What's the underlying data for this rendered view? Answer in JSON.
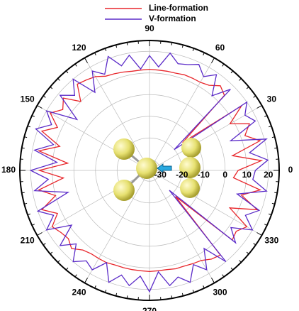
{
  "chart_data": {
    "type": "polar",
    "theta": [
      0,
      5,
      10,
      15,
      20,
      25,
      30,
      35,
      40,
      45,
      50,
      55,
      60,
      65,
      70,
      75,
      80,
      85,
      90,
      95,
      100,
      105,
      110,
      115,
      120,
      125,
      130,
      135,
      140,
      145,
      150,
      155,
      160,
      165,
      170,
      175,
      180,
      185,
      190,
      195,
      200,
      205,
      210,
      215,
      220,
      225,
      230,
      235,
      240,
      245,
      250,
      255,
      260,
      265,
      270,
      275,
      280,
      285,
      290,
      295,
      300,
      305,
      310,
      315,
      320,
      325,
      330,
      335,
      340,
      345,
      350,
      355
    ],
    "series": [
      {
        "name": "Line-formation",
        "color": "#e8262b",
        "values": [
          6,
          17,
          4,
          18,
          12,
          16,
          8,
          17,
          -15,
          14,
          16,
          13,
          12,
          12,
          12,
          11.5,
          11.5,
          11.5,
          11.7,
          11.5,
          11.5,
          12,
          12.5,
          13,
          15,
          16,
          17,
          10,
          17,
          14,
          18,
          12,
          18,
          8,
          17,
          3,
          16,
          5,
          17,
          10,
          18,
          12,
          17,
          15,
          14,
          16,
          13,
          12,
          12,
          12,
          11.5,
          11.5,
          11.5,
          11.5,
          11.7,
          11.5,
          11.5,
          12,
          12,
          12.5,
          13,
          15,
          16,
          -18,
          15,
          14,
          17,
          6,
          18,
          9,
          17,
          4
        ]
      },
      {
        "name": "V-formation",
        "color": "#5b2bc8",
        "values": [
          14,
          20,
          12,
          21,
          5,
          19,
          16,
          20,
          -20,
          18,
          10,
          19,
          15,
          19,
          17,
          16,
          20,
          13,
          18,
          12,
          19,
          15,
          21,
          14,
          18,
          9,
          20,
          14,
          19,
          6,
          20,
          15,
          21,
          11,
          19,
          8,
          20,
          12,
          19,
          4,
          20,
          14,
          20,
          9,
          19,
          13,
          20,
          16,
          18,
          12,
          20,
          15,
          19,
          14,
          21,
          12,
          19,
          16,
          20,
          13,
          18,
          9,
          20,
          -22,
          17,
          11,
          20,
          14,
          19,
          7,
          20,
          13
        ]
      }
    ],
    "rlim": [
      -35,
      25
    ],
    "rticks": [
      -30,
      -20,
      -10,
      0,
      10,
      20
    ],
    "thetaticks": [
      0,
      30,
      60,
      90,
      120,
      150,
      180,
      210,
      240,
      270,
      300,
      330
    ],
    "grid": true
  }
}
